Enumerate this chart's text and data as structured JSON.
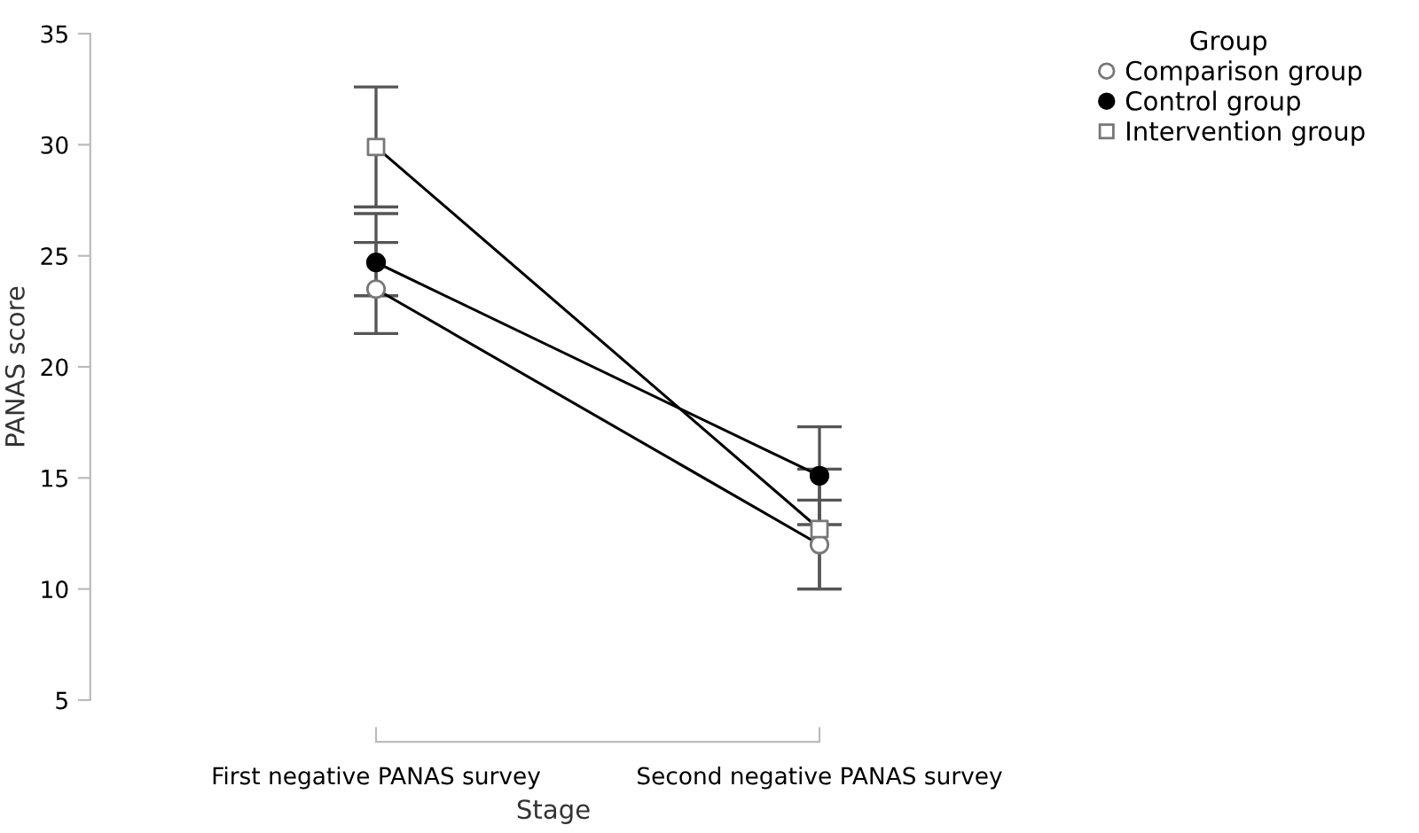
{
  "chart_data": {
    "type": "line",
    "xlabel": "Stage",
    "ylabel": "PANAS score",
    "legend_title": "Group",
    "legend": "top right",
    "grid": false,
    "categories": [
      "First negative PANAS survey",
      "Second negative PANAS survey"
    ],
    "ylim": [
      5,
      35
    ],
    "yticks": [
      5,
      10,
      15,
      20,
      25,
      30,
      35
    ],
    "series": [
      {
        "name": "Comparison group",
        "color": "#000000",
        "colors": [
          "#ffffff",
          "#ffffff"
        ],
        "marker": "circle",
        "values": [
          23.5,
          12.0
        ],
        "errors": [
          [
            21.5,
            25.6
          ],
          [
            10.0,
            14.0
          ]
        ]
      },
      {
        "name": "Control group",
        "color": "#000000",
        "marker": "circle",
        "values": [
          24.7,
          15.1
        ],
        "errors": [
          [
            23.2,
            26.9
          ],
          [
            12.9,
            17.3
          ]
        ]
      },
      {
        "name": "Intervention group",
        "color": "#000000",
        "colors": [
          "#ffffff",
          "#ffffff"
        ],
        "marker": "square",
        "values": [
          29.9,
          12.7
        ],
        "errors": [
          [
            27.2,
            32.6
          ],
          [
            10.0,
            15.4
          ]
        ]
      }
    ]
  }
}
